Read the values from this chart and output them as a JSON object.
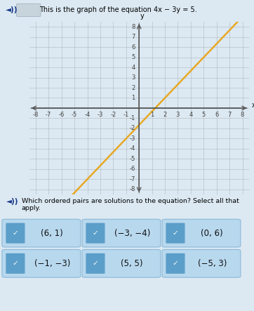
{
  "title": "This is the graph of the equation 4x − 3y = 5.",
  "xlim": [
    -8.5,
    8.5
  ],
  "ylim": [
    -8.5,
    8.5
  ],
  "line_color": "#E8A825",
  "line_x_start": -7.0,
  "line_x_end": 8.5,
  "bg_color": "#dce9f2",
  "graph_bg": "#dce9f2",
  "grid_color": "#b0b8c0",
  "axis_color": "#555555",
  "question_text": "Which ordered pairs are solutions to the equation? Select all that apply.",
  "pairs": [
    "(6, 1)",
    "(−3, −4)",
    "(0, 6)",
    "(−1, −3)",
    "(5, 5)",
    "(−5, 3)"
  ],
  "check_color": "#5b9ec9",
  "check_bg": "#b8d8ee",
  "btn_border": "#8ab8d8",
  "tick_fontsize": 6.0,
  "speaker_color": "#1a3a8a"
}
